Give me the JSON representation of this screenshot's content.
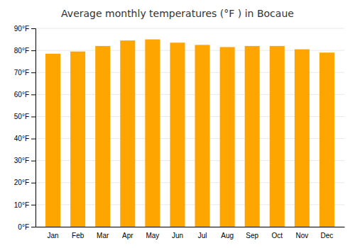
{
  "chart_data": {
    "type": "bar",
    "title": "Average monthly temperatures (°F ) in Bocaue",
    "categories": [
      "Jan",
      "Feb",
      "Mar",
      "Apr",
      "May",
      "Jun",
      "Jul",
      "Aug",
      "Sep",
      "Oct",
      "Nov",
      "Dec"
    ],
    "values": [
      78.5,
      79.5,
      82.0,
      84.5,
      85.0,
      83.5,
      82.5,
      81.5,
      82.0,
      82.0,
      80.5,
      79.0
    ],
    "color": "#FFA500",
    "ylim": [
      0,
      90
    ],
    "yticks": [
      {
        "value": 0,
        "label": "0°F"
      },
      {
        "value": 10,
        "label": "10°F"
      },
      {
        "value": 20,
        "label": "20°F"
      },
      {
        "value": 30,
        "label": "30°F"
      },
      {
        "value": 40,
        "label": "40°F"
      },
      {
        "value": 50,
        "label": "50°F"
      },
      {
        "value": 60,
        "label": "60°F"
      },
      {
        "value": 70,
        "label": "70°F"
      },
      {
        "value": 80,
        "label": "80°F"
      },
      {
        "value": 90,
        "label": "90°F"
      }
    ],
    "grid": true
  }
}
